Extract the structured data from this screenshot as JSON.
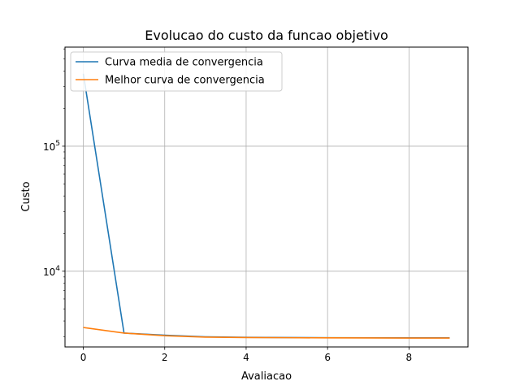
{
  "chart_data": {
    "type": "line",
    "title": "Evolucao do custo da funcao objetivo",
    "xlabel": "Avaliacao",
    "ylabel": "Custo",
    "yscale": "log",
    "grid": true,
    "legend_position": "top-left",
    "xlim": [
      -0.45,
      9.45
    ],
    "ylim": [
      2480,
      620000
    ],
    "x_ticks": [
      {
        "value": 0,
        "label": "0"
      },
      {
        "value": 2,
        "label": "2"
      },
      {
        "value": 4,
        "label": "4"
      },
      {
        "value": 6,
        "label": "6"
      },
      {
        "value": 8,
        "label": "8"
      }
    ],
    "y_ticks": [
      {
        "value": 10000,
        "base": "10",
        "exp": "4"
      },
      {
        "value": 100000,
        "base": "10",
        "exp": "5"
      }
    ],
    "x": [
      0,
      1,
      2,
      3,
      4,
      5,
      6,
      7,
      8,
      9
    ],
    "series": [
      {
        "name": "Curva media de convergencia",
        "color": "#1f77b4",
        "values": [
          380000,
          3200,
          3080,
          2990,
          2960,
          2950,
          2940,
          2935,
          2930,
          2930
        ]
      },
      {
        "name": "Melhor curva de convergencia",
        "color": "#ff7f0e",
        "values": [
          3550,
          3200,
          3050,
          2970,
          2950,
          2940,
          2930,
          2925,
          2920,
          2920
        ]
      }
    ]
  }
}
